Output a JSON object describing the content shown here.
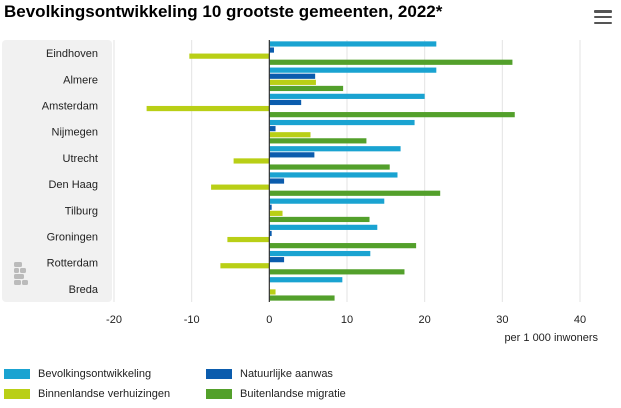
{
  "header": {
    "title": "Bevolkingsontwikkeling 10 grootste gemeenten, 2022*"
  },
  "menu": {
    "icon": "hamburger-menu-icon"
  },
  "logo": {
    "icon": "cbs-logo-icon"
  },
  "colors": {
    "Bevolkingsontwikkeling": "#1aa3d1",
    "Natuurlijke aanwas": "#0b5cad",
    "Binnenlandse verhuizingen": "#b9cf16",
    "Buitenlandse migratie": "#53a02b",
    "zero_line": "#333333",
    "grid": "#e3e3e3",
    "band": "#f1f1f1"
  },
  "chart_data": {
    "type": "bar",
    "orientation": "horizontal",
    "title": "Bevolkingsontwikkeling 10 grootste gemeenten, 2022*",
    "xlabel": "per 1 000 inwoners",
    "ylabel": "",
    "xlim": [
      -20,
      40
    ],
    "xticks": [
      "-20",
      "-10",
      "0",
      "10",
      "20",
      "30",
      "40"
    ],
    "categories": [
      "Eindhoven",
      "Almere",
      "Amsterdam",
      "Nijmegen",
      "Utrecht",
      "Den Haag",
      "Tilburg",
      "Groningen",
      "Rotterdam",
      "Breda"
    ],
    "series": [
      {
        "name": "Bevolkingsontwikkeling",
        "values": [
          21.5,
          21.5,
          20.0,
          18.7,
          16.9,
          16.5,
          14.8,
          13.9,
          13.0,
          9.4
        ]
      },
      {
        "name": "Natuurlijke aanwas",
        "values": [
          0.6,
          5.9,
          4.1,
          0.8,
          5.8,
          1.9,
          0.3,
          0.3,
          1.9,
          0.0
        ]
      },
      {
        "name": "Binnenlandse verhuizingen",
        "values": [
          -10.3,
          6.0,
          -15.8,
          5.3,
          -4.6,
          -7.5,
          1.7,
          -5.4,
          -6.3,
          0.8
        ]
      },
      {
        "name": "Buitenlandse migratie",
        "values": [
          31.3,
          9.5,
          31.6,
          12.5,
          15.5,
          22.0,
          12.9,
          18.9,
          17.4,
          8.4
        ]
      }
    ],
    "legend": {
      "placement": "bottom",
      "items": [
        "Bevolkingsontwikkeling",
        "Natuurlijke aanwas",
        "Binnenlandse verhuizingen",
        "Buitenlandse migratie"
      ]
    },
    "grid": true
  }
}
